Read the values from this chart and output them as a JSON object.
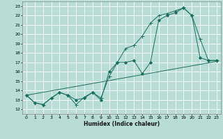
{
  "xlabel": "Humidex (Indice chaleur)",
  "xlim": [
    -0.5,
    23.5
  ],
  "ylim": [
    11.5,
    23.5
  ],
  "yticks": [
    12,
    13,
    14,
    15,
    16,
    17,
    18,
    19,
    20,
    21,
    22,
    23
  ],
  "xticks": [
    0,
    1,
    2,
    3,
    4,
    5,
    6,
    7,
    8,
    9,
    10,
    11,
    12,
    13,
    14,
    15,
    16,
    17,
    18,
    19,
    20,
    21,
    22,
    23
  ],
  "bg_color": "#b8ddd5",
  "grid_color": "#ffffff",
  "line_color": "#1a6e60",
  "line1_x": [
    0,
    1,
    2,
    3,
    4,
    5,
    6,
    7,
    8,
    9,
    10,
    11,
    12,
    13,
    14,
    15,
    16,
    17,
    18,
    19,
    20,
    21,
    22,
    23
  ],
  "line1_y": [
    13.5,
    12.7,
    12.5,
    13.2,
    13.8,
    13.5,
    12.5,
    13.3,
    13.8,
    13.2,
    15.5,
    17.0,
    18.5,
    18.8,
    19.8,
    21.2,
    22.0,
    22.2,
    22.5,
    22.8,
    22.0,
    19.5,
    17.2,
    17.2
  ],
  "line2_x": [
    0,
    1,
    2,
    3,
    4,
    5,
    6,
    7,
    8,
    9,
    10,
    11,
    12,
    13,
    14,
    15,
    16,
    17,
    18,
    19,
    20,
    21,
    22,
    23
  ],
  "line2_y": [
    13.5,
    12.7,
    12.5,
    13.2,
    13.8,
    13.5,
    13.0,
    13.2,
    13.8,
    13.0,
    16.0,
    17.0,
    17.0,
    17.2,
    15.8,
    17.0,
    21.5,
    22.0,
    22.3,
    22.8,
    22.0,
    17.5,
    17.2,
    17.2
  ],
  "line3_x": [
    0,
    23
  ],
  "line3_y": [
    13.5,
    17.1
  ]
}
